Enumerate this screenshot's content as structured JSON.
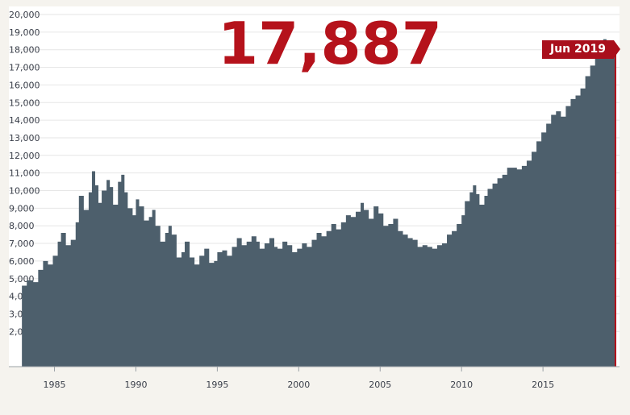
{
  "headline": {
    "value": "17,887",
    "date_label": "Jun 2019"
  },
  "colors": {
    "area": "#4d5f6c",
    "accent": "#b5121b",
    "background": "#f5f3ee"
  },
  "chart_data": {
    "type": "area",
    "title": "",
    "xlabel": "",
    "ylabel": "",
    "ylim": [
      0,
      20000
    ],
    "xlim": [
      1982.2,
      2019.7
    ],
    "grid": true,
    "y_ticks": [
      "2,000",
      "3,000",
      "4,000",
      "5,000",
      "6,000",
      "7,000",
      "8,000",
      "9,000",
      "10,000",
      "11,000",
      "12,000",
      "13,000",
      "14,000",
      "15,000",
      "16,000",
      "17,000",
      "18,000",
      "19,000",
      "20,000"
    ],
    "x_ticks": [
      "1985",
      "1990",
      "1995",
      "2000",
      "2005",
      "2010",
      "2015"
    ],
    "series": [
      {
        "points": [
          [
            1983.0,
            4600
          ],
          [
            1983.3,
            4900
          ],
          [
            1983.7,
            4800
          ],
          [
            1984.0,
            5500
          ],
          [
            1984.3,
            6000
          ],
          [
            1984.6,
            5800
          ],
          [
            1984.9,
            6300
          ],
          [
            1985.2,
            7100
          ],
          [
            1985.4,
            7600
          ],
          [
            1985.7,
            6900
          ],
          [
            1986.0,
            7200
          ],
          [
            1986.3,
            8200
          ],
          [
            1986.5,
            9700
          ],
          [
            1986.8,
            8900
          ],
          [
            1987.1,
            9900
          ],
          [
            1987.3,
            11100
          ],
          [
            1987.5,
            10300
          ],
          [
            1987.7,
            9300
          ],
          [
            1987.9,
            10000
          ],
          [
            1988.2,
            10600
          ],
          [
            1988.4,
            10200
          ],
          [
            1988.6,
            9200
          ],
          [
            1988.9,
            10500
          ],
          [
            1989.1,
            10900
          ],
          [
            1989.3,
            9900
          ],
          [
            1989.5,
            9000
          ],
          [
            1989.8,
            8600
          ],
          [
            1990.0,
            9500
          ],
          [
            1990.2,
            9100
          ],
          [
            1990.5,
            8300
          ],
          [
            1990.8,
            8500
          ],
          [
            1991.0,
            8900
          ],
          [
            1991.2,
            8000
          ],
          [
            1991.5,
            7100
          ],
          [
            1991.8,
            7600
          ],
          [
            1992.0,
            8000
          ],
          [
            1992.2,
            7500
          ],
          [
            1992.5,
            6200
          ],
          [
            1992.8,
            6500
          ],
          [
            1993.0,
            7100
          ],
          [
            1993.3,
            6200
          ],
          [
            1993.6,
            5800
          ],
          [
            1993.9,
            6300
          ],
          [
            1994.2,
            6700
          ],
          [
            1994.5,
            5900
          ],
          [
            1994.8,
            6000
          ],
          [
            1995.0,
            6500
          ],
          [
            1995.3,
            6600
          ],
          [
            1995.6,
            6300
          ],
          [
            1995.9,
            6800
          ],
          [
            1996.2,
            7300
          ],
          [
            1996.5,
            6900
          ],
          [
            1996.8,
            7100
          ],
          [
            1997.1,
            7400
          ],
          [
            1997.4,
            7100
          ],
          [
            1997.6,
            6700
          ],
          [
            1997.9,
            7000
          ],
          [
            1998.2,
            7300
          ],
          [
            1998.5,
            6800
          ],
          [
            1998.7,
            6700
          ],
          [
            1999.0,
            7100
          ],
          [
            1999.3,
            6900
          ],
          [
            1999.6,
            6500
          ],
          [
            1999.9,
            6700
          ],
          [
            2000.2,
            7000
          ],
          [
            2000.5,
            6800
          ],
          [
            2000.8,
            7200
          ],
          [
            2001.1,
            7600
          ],
          [
            2001.4,
            7400
          ],
          [
            2001.7,
            7700
          ],
          [
            2002.0,
            8100
          ],
          [
            2002.3,
            7800
          ],
          [
            2002.6,
            8200
          ],
          [
            2002.9,
            8600
          ],
          [
            2003.2,
            8500
          ],
          [
            2003.5,
            8800
          ],
          [
            2003.8,
            9300
          ],
          [
            2004.0,
            8900
          ],
          [
            2004.3,
            8400
          ],
          [
            2004.6,
            9100
          ],
          [
            2004.9,
            8700
          ],
          [
            2005.2,
            8000
          ],
          [
            2005.5,
            8100
          ],
          [
            2005.8,
            8400
          ],
          [
            2006.1,
            7700
          ],
          [
            2006.4,
            7500
          ],
          [
            2006.7,
            7300
          ],
          [
            2007.0,
            7200
          ],
          [
            2007.3,
            6800
          ],
          [
            2007.6,
            6900
          ],
          [
            2007.9,
            6800
          ],
          [
            2008.2,
            6700
          ],
          [
            2008.5,
            6900
          ],
          [
            2008.8,
            7000
          ],
          [
            2009.1,
            7500
          ],
          [
            2009.4,
            7700
          ],
          [
            2009.7,
            8100
          ],
          [
            2010.0,
            8600
          ],
          [
            2010.2,
            9400
          ],
          [
            2010.5,
            9900
          ],
          [
            2010.7,
            10300
          ],
          [
            2010.9,
            9800
          ],
          [
            2011.1,
            9200
          ],
          [
            2011.4,
            9700
          ],
          [
            2011.6,
            10100
          ],
          [
            2011.9,
            10400
          ],
          [
            2012.2,
            10700
          ],
          [
            2012.5,
            10900
          ],
          [
            2012.8,
            11300
          ],
          [
            2013.1,
            11300
          ],
          [
            2013.4,
            11200
          ],
          [
            2013.7,
            11400
          ],
          [
            2014.0,
            11700
          ],
          [
            2014.3,
            12200
          ],
          [
            2014.6,
            12800
          ],
          [
            2014.9,
            13300
          ],
          [
            2015.2,
            13800
          ],
          [
            2015.5,
            14300
          ],
          [
            2015.8,
            14500
          ],
          [
            2016.1,
            14200
          ],
          [
            2016.4,
            14800
          ],
          [
            2016.7,
            15200
          ],
          [
            2017.0,
            15400
          ],
          [
            2017.3,
            15800
          ],
          [
            2017.6,
            16500
          ],
          [
            2017.9,
            17100
          ],
          [
            2018.2,
            17600
          ],
          [
            2018.5,
            18100
          ],
          [
            2018.7,
            18600
          ],
          [
            2018.9,
            18400
          ],
          [
            2019.2,
            18200
          ],
          [
            2019.4,
            17887
          ]
        ]
      }
    ]
  }
}
